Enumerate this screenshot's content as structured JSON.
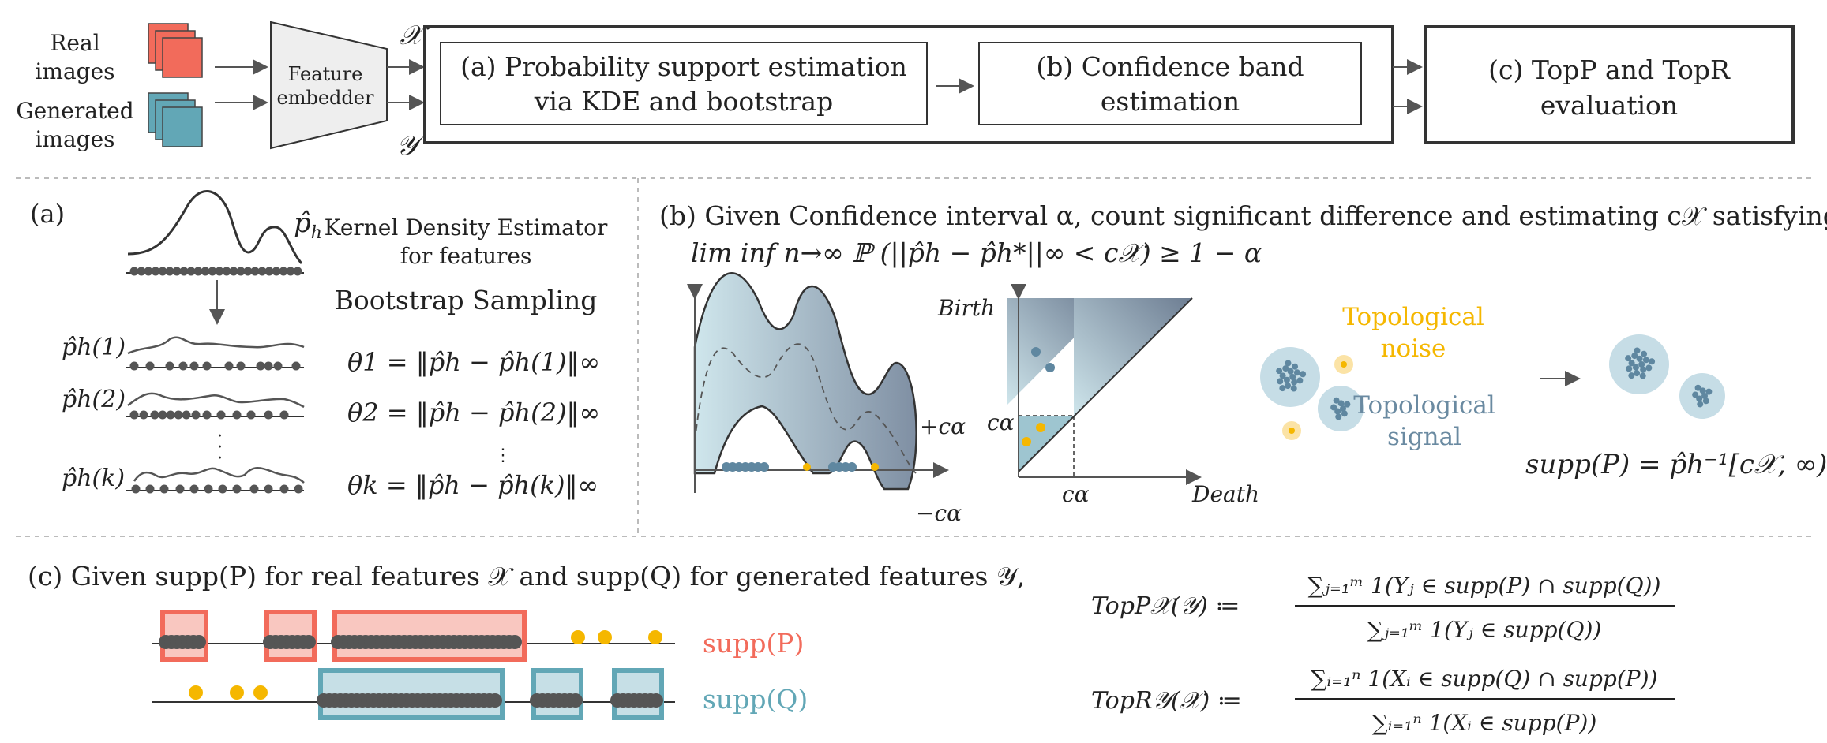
{
  "pipeline": {
    "real_label_1": "Real",
    "real_label_2": "images",
    "gen_label_1": "Generated",
    "gen_label_2": "images",
    "embedder_1": "Feature",
    "embedder_2": "embedder",
    "x_sym": "𝒳",
    "y_sym": "𝒴",
    "box_a_1": "(a)  Probability support estimation",
    "box_a_2": "via KDE and bootstrap",
    "box_b_1": "(b) Confidence band",
    "box_b_2": "estimation",
    "box_c_1": "(c) TopP and TopR",
    "box_c_2": "evaluation"
  },
  "panel_a": {
    "tag": "(a)",
    "ph": "p̂",
    "ph_sub": "h",
    "kde_1": "Kernel Density Estimator",
    "kde_2": "for features",
    "bootstrap": "Bootstrap Sampling",
    "row1_lab": "p̂h(1)",
    "row2_lab": "p̂h(2)",
    "rowk_lab": "p̂h(k)",
    "theta1": "θ1 = ‖p̂h − p̂h(1)‖∞",
    "theta2": "θ2 = ‖p̂h − p̂h(2)‖∞",
    "thetak": "θk = ‖p̂h − p̂h(k)‖∞"
  },
  "panel_b": {
    "line1": "(b)  Given Confidence interval α, count significant difference and estimating c𝒳 satisfying",
    "line2": "lim inf n→∞ ℙ (||p̂h − p̂h*||∞ < c𝒳)  ≥ 1 − α",
    "plus_c": "+cα",
    "minus_c": "−cα",
    "birth": "Birth",
    "death": "Death",
    "c_alpha_y": "cα",
    "c_alpha_x": "cα",
    "noise_1": "Topological",
    "noise_2": "noise",
    "signal_1": "Topological",
    "signal_2": "signal",
    "supp_formula": "supp(P) = p̂h⁻¹[c𝒳, ∞)"
  },
  "panel_c": {
    "line": "(c)  Given supp(P) for real features 𝒳 and supp(Q) for generated features 𝒴,",
    "suppP": "supp(P)",
    "suppQ": "supp(Q)",
    "topp_lhs": "TopP𝒳(𝒴) ≔",
    "topp_num": "∑ⱼ₌₁ᵐ 1(Yⱼ ∈ supp(P) ∩ supp(Q))",
    "topp_den": "∑ⱼ₌₁ᵐ 1(Yⱼ ∈ supp(Q))",
    "topr_lhs": "TopR𝒴(𝒳) ≔",
    "topr_num": "∑ᵢ₌₁ⁿ 1(Xᵢ ∈ supp(Q) ∩ supp(P))",
    "topr_den": "∑ᵢ₌₁ⁿ 1(Xᵢ ∈ supp(P))"
  },
  "colors": {
    "red": "#f26b5b",
    "red_fill": "#f9c7c0",
    "teal": "#62a7b6",
    "teal_fill": "#c6dfe6",
    "yellow": "#f5b700",
    "dark": "#555555",
    "slate": "#6a8aa1"
  }
}
